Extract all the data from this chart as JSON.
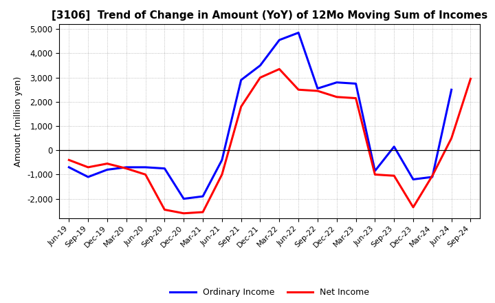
{
  "title": "[3106]  Trend of Change in Amount (YoY) of 12Mo Moving Sum of Incomes",
  "ylabel": "Amount (million yen)",
  "background_color": "#ffffff",
  "plot_bg_color": "#ffffff",
  "grid_color": "#aaaaaa",
  "x_labels": [
    "Jun-19",
    "Sep-19",
    "Dec-19",
    "Mar-20",
    "Jun-20",
    "Sep-20",
    "Dec-20",
    "Mar-21",
    "Jun-21",
    "Sep-21",
    "Dec-21",
    "Mar-22",
    "Jun-22",
    "Sep-22",
    "Dec-22",
    "Mar-23",
    "Jun-23",
    "Sep-23",
    "Dec-23",
    "Mar-24",
    "Jun-24",
    "Sep-24"
  ],
  "ordinary_income": [
    -700,
    -1100,
    -800,
    -700,
    -700,
    -750,
    -2000,
    -1900,
    -400,
    2900,
    3500,
    4550,
    4850,
    2550,
    2800,
    2750,
    -850,
    150,
    -1200,
    -1100,
    2500,
    null
  ],
  "net_income": [
    -400,
    -700,
    -550,
    -750,
    -1000,
    -2450,
    -2600,
    -2550,
    -1000,
    1800,
    3000,
    3350,
    2500,
    2450,
    2200,
    2150,
    -1000,
    -1050,
    -2350,
    -1050,
    500,
    2950
  ],
  "ordinary_color": "#0000ff",
  "net_color": "#ff0000",
  "ylim": [
    -2800,
    5200
  ],
  "yticks": [
    -2000,
    -1000,
    0,
    1000,
    2000,
    3000,
    4000,
    5000
  ],
  "linewidth": 2.2,
  "legend_labels": [
    "Ordinary Income",
    "Net Income"
  ]
}
